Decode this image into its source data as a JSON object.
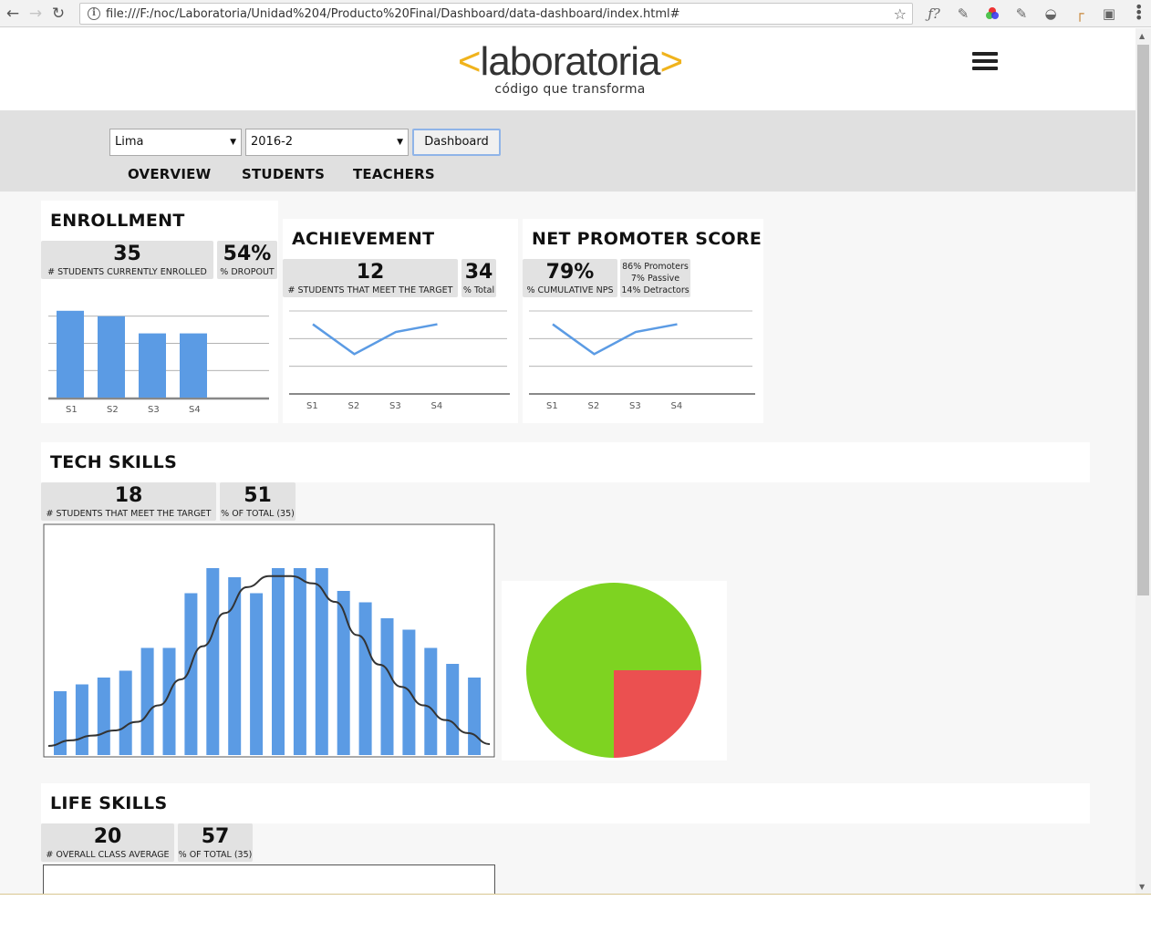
{
  "browser": {
    "url": "file:///F:/noc/Laboratoria/Unidad%204/Producto%20Final/Dashboard/data-dashboard/index.html#"
  },
  "header": {
    "logo_left": "<",
    "logo_text": "laboratoria",
    "logo_right": ">",
    "tagline": "código que transforma"
  },
  "filters": {
    "campus": "Lima",
    "generation": "2016-2",
    "button_label": "Dashboard"
  },
  "tabs": [
    "OVERVIEW",
    "STUDENTS",
    "TEACHERS"
  ],
  "enrollment": {
    "title": "ENROLLMENT",
    "count": "35",
    "count_label": "# STUDENTS CURRENTLY ENROLLED",
    "dropout": "54%",
    "dropout_label": "% DROPOUT",
    "chart_data": {
      "type": "bar",
      "categories": [
        "S1",
        "S2",
        "S3",
        "S4"
      ],
      "values": [
        96,
        90,
        71,
        71
      ],
      "ylim": [
        0,
        120
      ],
      "grid": true,
      "color": "#5b9be4"
    }
  },
  "achievement": {
    "title": "ACHIEVEMENT",
    "count": "12",
    "count_label": "# STUDENTS THAT MEET THE TARGET",
    "total": "34",
    "total_label": "% Total",
    "chart_data": {
      "type": "line",
      "categories": [
        "S1",
        "S2",
        "S3",
        "S4"
      ],
      "values": [
        63,
        36,
        56,
        63
      ],
      "ylim": [
        0,
        75
      ],
      "grid": true,
      "color": "#5b9be4"
    }
  },
  "nps": {
    "title": "NET PROMOTER SCORE",
    "score": "79%",
    "score_label": "% CUMULATIVE NPS",
    "promoters": "86% Promoters",
    "passive": "7% Passive",
    "detractors": "14% Detractors",
    "chart_data": {
      "type": "line",
      "categories": [
        "S1",
        "S2",
        "S3",
        "S4"
      ],
      "values": [
        63,
        36,
        56,
        63
      ],
      "ylim": [
        0,
        75
      ],
      "grid": true,
      "color": "#5b9be4"
    }
  },
  "tech_skills": {
    "title": "TECH SKILLS",
    "count": "18",
    "count_label": "# STUDENTS THAT MEET THE TARGET",
    "total": "51",
    "total_label": "% OF TOTAL (35)",
    "histogram": {
      "type": "bar",
      "values": [
        28,
        31,
        34,
        37,
        47,
        47,
        71,
        82,
        78,
        71,
        82,
        82,
        82,
        72,
        67,
        60,
        55,
        47,
        40,
        34
      ],
      "ylim": [
        0,
        100
      ],
      "bar_color": "#5b9be4",
      "curve": [
        0,
        1.5,
        2.8,
        4.2,
        6.5,
        11,
        18,
        27,
        36,
        43,
        46,
        46,
        44,
        39,
        30,
        22,
        16,
        11,
        7,
        3.5,
        0.5
      ],
      "curve_color": "#333333"
    },
    "pie": {
      "type": "pie",
      "values": [
        75,
        25
      ],
      "colors": [
        "#7ed321",
        "#eb5050"
      ]
    }
  },
  "life_skills": {
    "title": "LIFE SKILLS",
    "average": "20",
    "average_label": "# OVERALL CLASS AVERAGE",
    "total": "57",
    "total_label": "% OF TOTAL (35)"
  }
}
